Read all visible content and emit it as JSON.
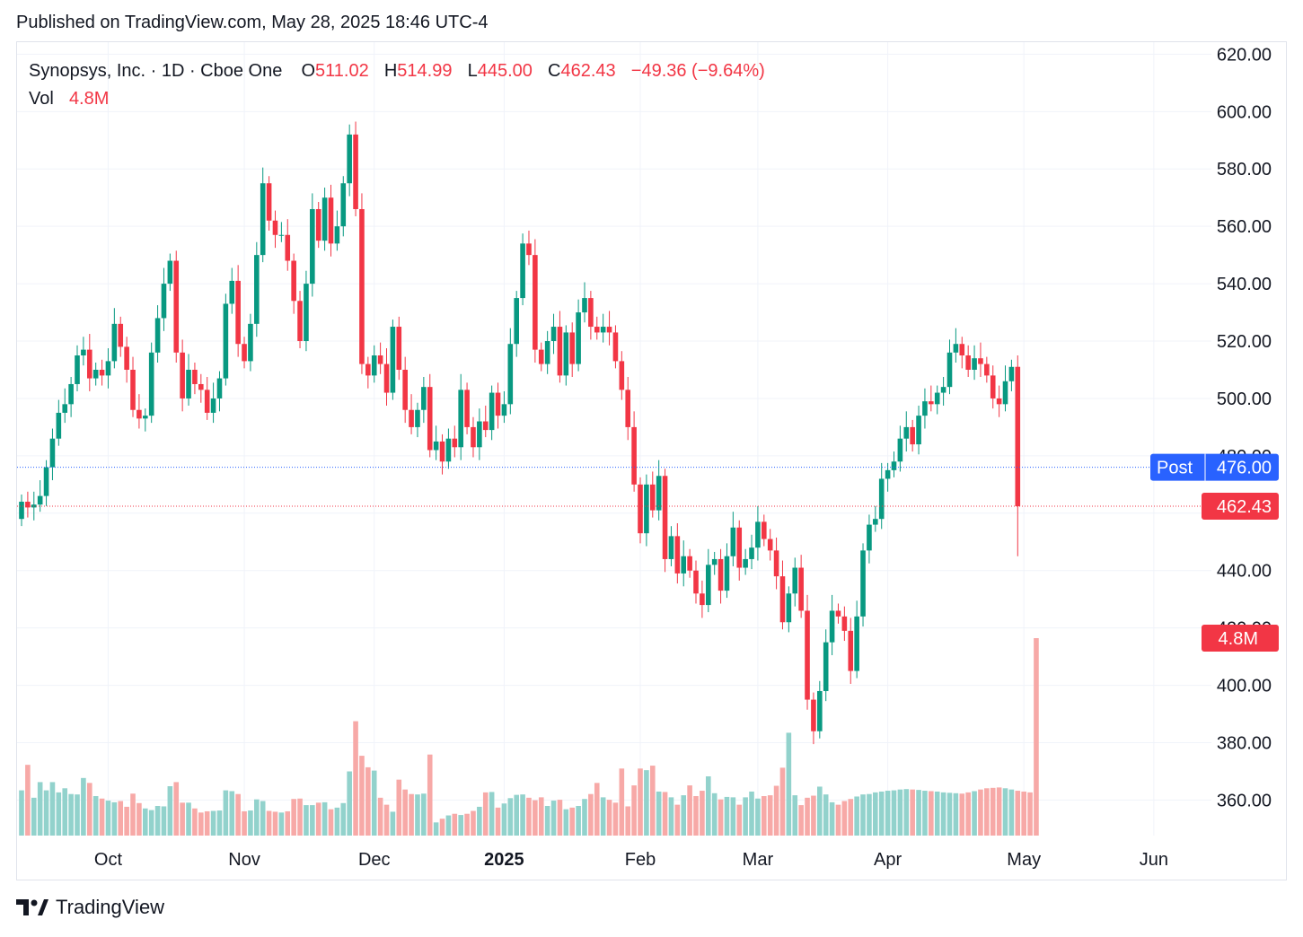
{
  "published": "Published on TradingView.com, May 28, 2025 18:46 UTC-4",
  "legend": {
    "symbol": "Synopsys, Inc. · 1D · Cboe One",
    "open_label": "O",
    "open": "511.02",
    "high_label": "H",
    "high": "514.99",
    "low_label": "L",
    "low": "445.00",
    "close_label": "C",
    "close": "462.43",
    "change": "−49.36 (−9.64%)",
    "vol_label": "Vol",
    "vol": "4.8M"
  },
  "footer": {
    "brand": "TradingView",
    "logo_icon": "tradingview-logo-icon"
  },
  "colors": {
    "up": "#089981",
    "down": "#f23645",
    "up_vol": "#92d2cc",
    "down_vol": "#f7a9a7",
    "post": "#2962ff",
    "grid": "#f0f3fa"
  },
  "chart_data": {
    "type": "candlestick",
    "x_labels": [
      {
        "index": 14,
        "text": "Oct"
      },
      {
        "index": 36,
        "text": "Nov"
      },
      {
        "index": 57,
        "text": "Dec"
      },
      {
        "index": 78,
        "text": "2025",
        "bold": true
      },
      {
        "index": 100,
        "text": "Feb"
      },
      {
        "index": 119,
        "text": "Mar"
      },
      {
        "index": 140,
        "text": "Apr"
      },
      {
        "index": 162,
        "text": "May"
      },
      {
        "index": 183,
        "text": "Jun"
      }
    ],
    "y_ticks": [
      360,
      380,
      400,
      420,
      440,
      460,
      480,
      500,
      520,
      540,
      560,
      580,
      600,
      620
    ],
    "ylim": [
      352,
      622
    ],
    "last_price": {
      "label": "462.43",
      "value": 462.43
    },
    "post_price": {
      "prefix": "Post",
      "label": "476.00",
      "value": 476.0
    },
    "volume_badge": "4.8M",
    "closes": [
      464,
      462,
      463,
      466,
      476,
      486,
      495,
      498,
      505,
      515,
      517,
      507,
      510,
      508,
      513,
      526,
      518,
      510,
      496,
      493,
      494,
      516,
      528,
      540,
      548,
      516,
      500,
      510,
      505,
      503,
      495,
      500,
      507,
      533,
      541,
      519,
      513,
      526,
      550,
      575,
      562,
      557,
      557,
      548,
      534,
      520,
      540,
      566,
      555,
      570,
      554,
      560,
      575,
      592,
      566,
      512,
      508,
      515,
      512,
      502,
      525,
      510,
      496,
      490,
      496,
      504,
      482,
      485,
      478,
      486,
      483,
      503,
      490,
      483,
      492,
      489,
      502,
      494,
      498,
      519,
      535,
      554,
      550,
      517,
      512,
      520,
      525,
      508,
      523,
      512,
      530,
      535,
      525,
      523,
      525,
      523,
      513,
      503,
      490,
      470,
      453,
      470,
      461,
      473,
      444,
      452,
      439,
      445,
      440,
      432,
      428,
      442,
      444,
      433,
      445,
      455,
      441,
      444,
      448,
      457,
      451,
      447,
      438,
      422,
      432,
      441,
      426,
      395,
      384,
      398,
      415,
      426,
      424,
      419,
      405,
      424,
      447,
      456,
      458,
      472,
      475,
      478,
      486,
      490,
      484,
      494,
      499,
      498,
      502,
      504,
      516,
      519,
      515,
      510,
      514,
      512,
      508,
      500,
      498,
      506,
      511,
      462.43
    ],
    "volumes": [
      1.1,
      1.72,
      0.92,
      1.3,
      1.1,
      1.3,
      1.05,
      1.15,
      1.01,
      1.0,
      1.4,
      1.28,
      0.96,
      0.9,
      0.85,
      0.81,
      0.84,
      0.7,
      1.02,
      0.79,
      0.66,
      0.62,
      0.72,
      0.71,
      1.2,
      1.3,
      0.8,
      0.8,
      0.66,
      0.56,
      0.59,
      0.6,
      0.61,
      1.1,
      1.08,
      1.01,
      0.59,
      0.61,
      0.88,
      0.84,
      0.6,
      0.58,
      0.56,
      0.59,
      0.89,
      0.9,
      0.74,
      0.74,
      0.8,
      0.81,
      0.64,
      0.68,
      0.79,
      1.56,
      2.78,
      1.94,
      1.66,
      1.58,
      0.92,
      0.75,
      0.58,
      1.36,
      1.12,
      1.01,
      1.0,
      1.02,
      1.97,
      0.32,
      0.41,
      0.49,
      0.53,
      0.5,
      0.53,
      0.6,
      0.7,
      1.05,
      1.06,
      0.68,
      0.78,
      0.91,
      0.99,
      1.0,
      0.92,
      0.86,
      0.93,
      0.72,
      0.85,
      0.87,
      0.64,
      0.68,
      0.72,
      0.89,
      1.01,
      1.28,
      0.93,
      0.87,
      0.8,
      1.63,
      0.71,
      1.22,
      1.63,
      1.59,
      1.7,
      1.07,
      1.06,
      0.93,
      0.75,
      0.98,
      1.22,
      0.96,
      1.09,
      1.44,
      1.03,
      0.88,
      0.94,
      0.93,
      0.75,
      0.93,
      1.07,
      0.9,
      0.96,
      0.98,
      1.21,
      1.65,
      2.5,
      0.98,
      0.74,
      0.92,
      0.97,
      1.19,
      1.0,
      0.81,
      0.75,
      0.84,
      0.89,
      0.95,
      1.0,
      1.01,
      1.05,
      1.07,
      1.09,
      1.1,
      1.12,
      1.13,
      1.12,
      1.11,
      1.09,
      1.08,
      1.07,
      1.05,
      1.04,
      1.03,
      1.02,
      1.05,
      1.08,
      1.12,
      1.15,
      1.16,
      1.17,
      1.15,
      1.12,
      1.09,
      1.07,
      1.05,
      4.8
    ],
    "vol_max": 4.8
  }
}
